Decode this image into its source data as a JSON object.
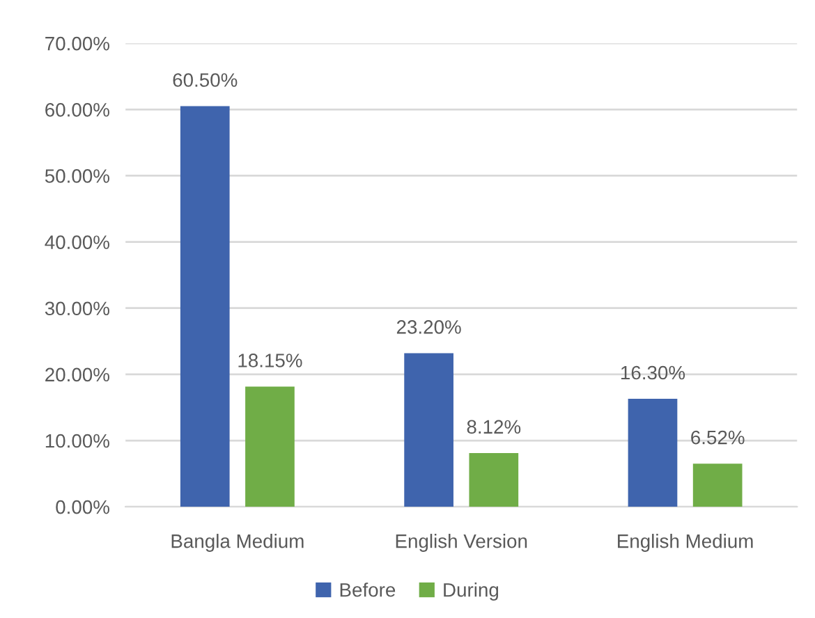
{
  "chart_data": {
    "type": "bar",
    "categories": [
      "Bangla Medium",
      "English Version",
      "English Medium"
    ],
    "series": [
      {
        "name": "Before",
        "color": "#3f64ad",
        "values": [
          60.5,
          23.2,
          16.3
        ],
        "value_labels": [
          "60.50%",
          "23.20%",
          "16.30%"
        ]
      },
      {
        "name": "During",
        "color": "#70ad47",
        "values": [
          18.15,
          8.12,
          6.52
        ],
        "value_labels": [
          "18.15%",
          "8.12%",
          "6.52%"
        ]
      }
    ],
    "ylim": [
      0,
      70
    ],
    "yticks": [
      {
        "value": 0,
        "label": "0.00%"
      },
      {
        "value": 10,
        "label": "10.00%"
      },
      {
        "value": 20,
        "label": "20.00%"
      },
      {
        "value": 30,
        "label": "30.00%"
      },
      {
        "value": 40,
        "label": "40.00%"
      },
      {
        "value": 50,
        "label": "50.00%"
      },
      {
        "value": 60,
        "label": "60.00%"
      },
      {
        "value": 70,
        "label": "70.00%"
      }
    ],
    "grid": "y",
    "legend": "bottom"
  }
}
